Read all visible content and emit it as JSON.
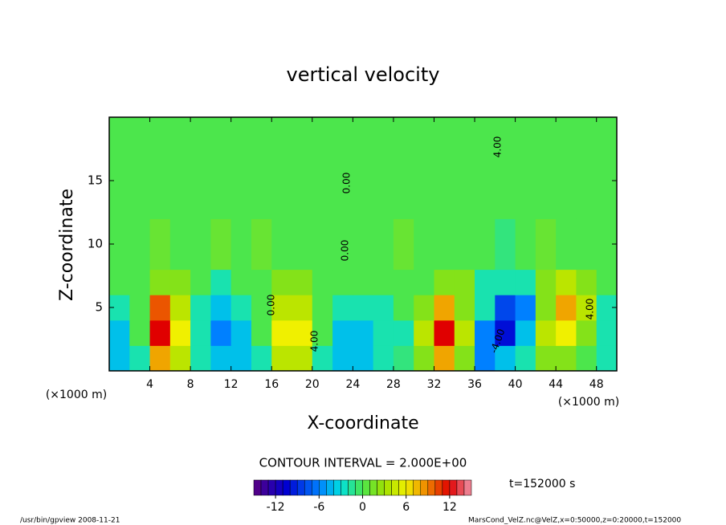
{
  "chart_data": {
    "type": "heatmap",
    "title": "vertical velocity",
    "x_label": "X-coordinate",
    "y_label": "Z-coordinate",
    "x_unit": "(×1000 m)",
    "y_unit": "(×1000 m)",
    "xlim": [
      0,
      50
    ],
    "ylim": [
      0,
      20
    ],
    "xticks": [
      4,
      8,
      12,
      16,
      20,
      24,
      28,
      32,
      36,
      40,
      44,
      48
    ],
    "yticks": [
      5,
      10,
      15
    ],
    "x_bins": [
      0,
      2,
      4,
      6,
      8,
      10,
      12,
      14,
      16,
      18,
      20,
      22,
      24,
      26,
      28,
      30,
      32,
      34,
      36,
      38,
      40,
      42,
      44,
      46,
      48,
      50
    ],
    "y_bins": [
      0,
      2,
      4,
      6,
      8,
      12,
      20
    ],
    "values": [
      [
        -4,
        -2,
        8,
        4,
        -2,
        -4,
        -4,
        -2,
        4,
        4,
        -2,
        -4,
        -4,
        -2,
        -1,
        2,
        8,
        2,
        -6,
        -4,
        -2,
        2,
        2,
        0,
        -2
      ],
      [
        -4,
        0,
        12,
        6,
        -2,
        -6,
        -4,
        0,
        6,
        6,
        0,
        -4,
        -4,
        -2,
        -2,
        4,
        12,
        4,
        -6,
        -10,
        -4,
        4,
        6,
        2,
        -2
      ],
      [
        -2,
        0,
        10,
        4,
        -2,
        -4,
        -2,
        0,
        4,
        4,
        0,
        -2,
        -2,
        -2,
        0,
        2,
        8,
        2,
        -2,
        -8,
        -6,
        2,
        8,
        4,
        -2
      ],
      [
        0,
        0,
        2,
        2,
        0,
        -2,
        0,
        0,
        2,
        2,
        0,
        0,
        0,
        0,
        0,
        0,
        2,
        2,
        -2,
        -2,
        -2,
        2,
        4,
        2,
        0
      ],
      [
        0,
        0,
        1,
        0,
        0,
        1,
        0,
        1,
        0,
        0,
        0,
        0,
        0,
        0,
        1,
        0,
        0,
        0,
        0,
        -1,
        0,
        1,
        0,
        0,
        0
      ],
      [
        0,
        0,
        0,
        0,
        0,
        0,
        0,
        0,
        0,
        0,
        0,
        0,
        0,
        0,
        0,
        0,
        0,
        0,
        0,
        0,
        0,
        0,
        0,
        0,
        0
      ]
    ],
    "contour_labels": [
      "0.00",
      "0.00",
      "0.00",
      "4.00",
      "4.00",
      "-4.00",
      "4.00"
    ],
    "contour_interval": "CONTOUR INTERVAL = 2.000E+00",
    "colorbar": {
      "lim": [
        -15,
        15
      ],
      "ticks": [
        -12,
        -6,
        0,
        6,
        12
      ]
    },
    "time_label": "t=152000 s",
    "footer_left": "/usr/bin/gpview   2008-11-21",
    "footer_right": "MarsCond_VelZ.nc@VelZ,x=0:50000,z=0:20000,t=152000"
  }
}
